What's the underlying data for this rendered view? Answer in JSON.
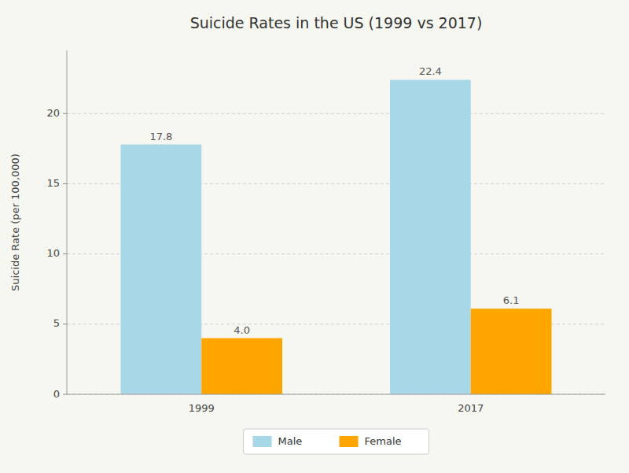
{
  "chart_data": {
    "type": "bar",
    "title": "Suicide Rates in the US (1999 vs 2017)",
    "ylabel": "Suicide Rate (per 100,000)",
    "categories": [
      "1999",
      "2017"
    ],
    "series": [
      {
        "name": "Male",
        "color": "#a8d8e8",
        "values": [
          17.8,
          22.4
        ],
        "value_labels": [
          "17.8",
          "22.4"
        ]
      },
      {
        "name": "Female",
        "color": "#ffa500",
        "values": [
          4.0,
          6.1
        ],
        "value_labels": [
          "4.0",
          "6.1"
        ]
      }
    ],
    "ylim": [
      0,
      24.5
    ],
    "yticks": [
      0,
      5,
      10,
      15,
      20
    ],
    "grid": true,
    "legend": "bottom",
    "data_labels": true
  }
}
